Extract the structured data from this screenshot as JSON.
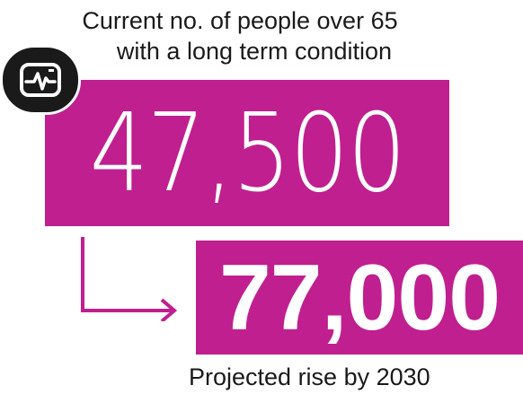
{
  "caption_top": {
    "line1": "Current no. of people over 65",
    "line2": "with a long term condition"
  },
  "current_value": "47,500",
  "projected_value": "77,000",
  "caption_bottom": "Projected rise by 2030",
  "icon": "heart-monitor-icon",
  "colors": {
    "accent": "#c01f8f",
    "text": "#1a1a1a",
    "icon_bg": "#1a1a1a"
  }
}
